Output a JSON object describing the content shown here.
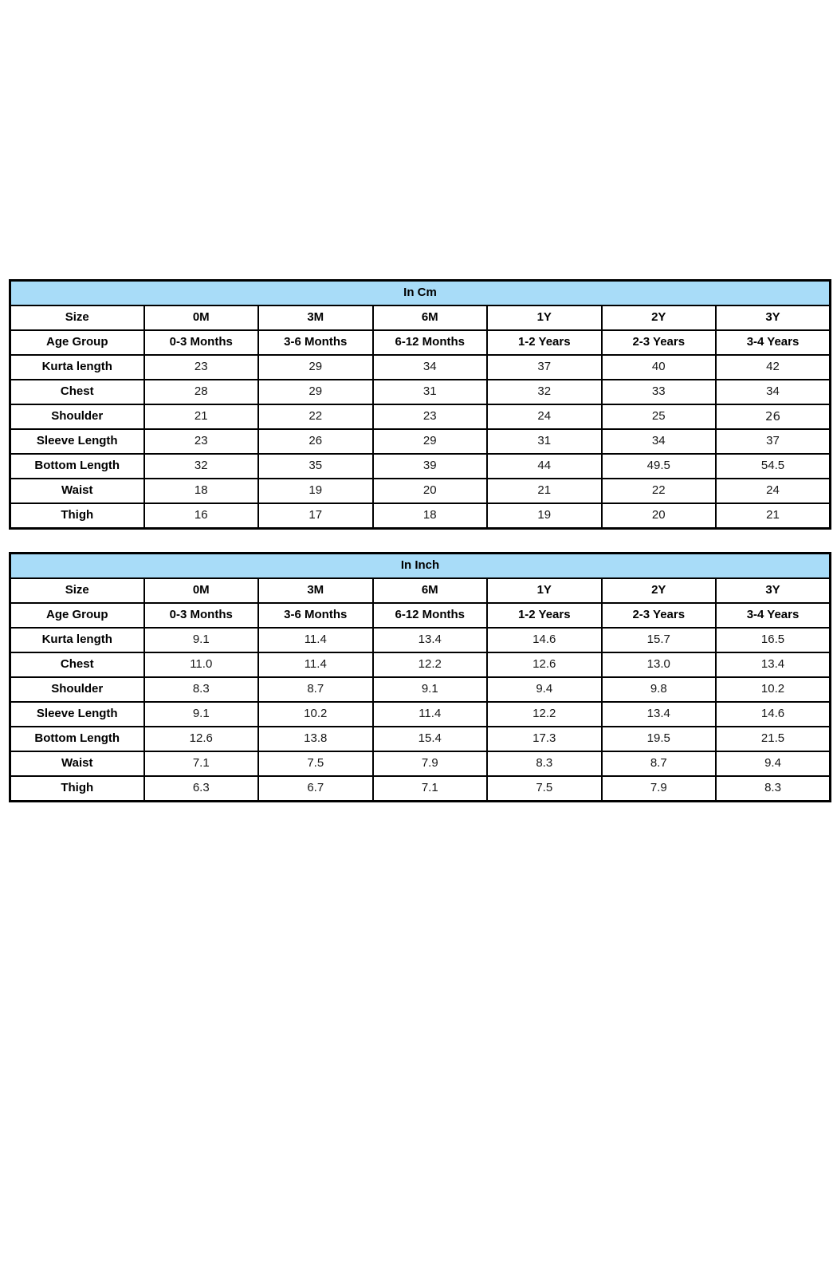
{
  "colors": {
    "header_bg": "#a8dcf8",
    "border": "#000000",
    "text": "#000000",
    "page_bg": "#ffffff"
  },
  "tables": [
    {
      "id": "cm",
      "title": "In Cm",
      "header_rows": [
        {
          "label": "Size",
          "values": [
            "0M",
            "3M",
            "6M",
            "1Y",
            "2Y",
            "3Y"
          ]
        },
        {
          "label": "Age Group",
          "values": [
            "0-3 Months",
            "3-6 Months",
            "6-12 Months",
            "1-2 Years",
            "2-3 Years",
            "3-4 Years"
          ]
        }
      ],
      "rows": [
        {
          "label": "Kurta length",
          "values": [
            "23",
            "29",
            "34",
            "37",
            "40",
            "42"
          ]
        },
        {
          "label": "Chest",
          "values": [
            "28",
            "29",
            "31",
            "32",
            "33",
            "34"
          ]
        },
        {
          "label": "Shoulder",
          "values": [
            "21",
            "22",
            "23",
            "24",
            "25",
            "26"
          ],
          "odd_font_col": 5
        },
        {
          "label": "Sleeve Length",
          "values": [
            "23",
            "26",
            "29",
            "31",
            "34",
            "37"
          ]
        },
        {
          "label": "Bottom Length",
          "values": [
            "32",
            "35",
            "39",
            "44",
            "49.5",
            "54.5"
          ]
        },
        {
          "label": "Waist",
          "values": [
            "18",
            "19",
            "20",
            "21",
            "22",
            "24"
          ]
        },
        {
          "label": "Thigh",
          "values": [
            "16",
            "17",
            "18",
            "19",
            "20",
            "21"
          ]
        }
      ]
    },
    {
      "id": "inch",
      "title": "In Inch",
      "header_rows": [
        {
          "label": "Size",
          "values": [
            "0M",
            "3M",
            "6M",
            "1Y",
            "2Y",
            "3Y"
          ]
        },
        {
          "label": "Age Group",
          "values": [
            "0-3 Months",
            "3-6 Months",
            "6-12 Months",
            "1-2 Years",
            "2-3 Years",
            "3-4 Years"
          ]
        }
      ],
      "rows": [
        {
          "label": "Kurta length",
          "values": [
            "9.1",
            "11.4",
            "13.4",
            "14.6",
            "15.7",
            "16.5"
          ]
        },
        {
          "label": "Chest",
          "values": [
            "11.0",
            "11.4",
            "12.2",
            "12.6",
            "13.0",
            "13.4"
          ]
        },
        {
          "label": "Shoulder",
          "values": [
            "8.3",
            "8.7",
            "9.1",
            "9.4",
            "9.8",
            "10.2"
          ]
        },
        {
          "label": "Sleeve Length",
          "values": [
            "9.1",
            "10.2",
            "11.4",
            "12.2",
            "13.4",
            "14.6"
          ]
        },
        {
          "label": "Bottom Length",
          "values": [
            "12.6",
            "13.8",
            "15.4",
            "17.3",
            "19.5",
            "21.5"
          ]
        },
        {
          "label": "Waist",
          "values": [
            "7.1",
            "7.5",
            "7.9",
            "8.3",
            "8.7",
            "9.4"
          ]
        },
        {
          "label": "Thigh",
          "values": [
            "6.3",
            "6.7",
            "7.1",
            "7.5",
            "7.9",
            "8.3"
          ]
        }
      ]
    }
  ]
}
